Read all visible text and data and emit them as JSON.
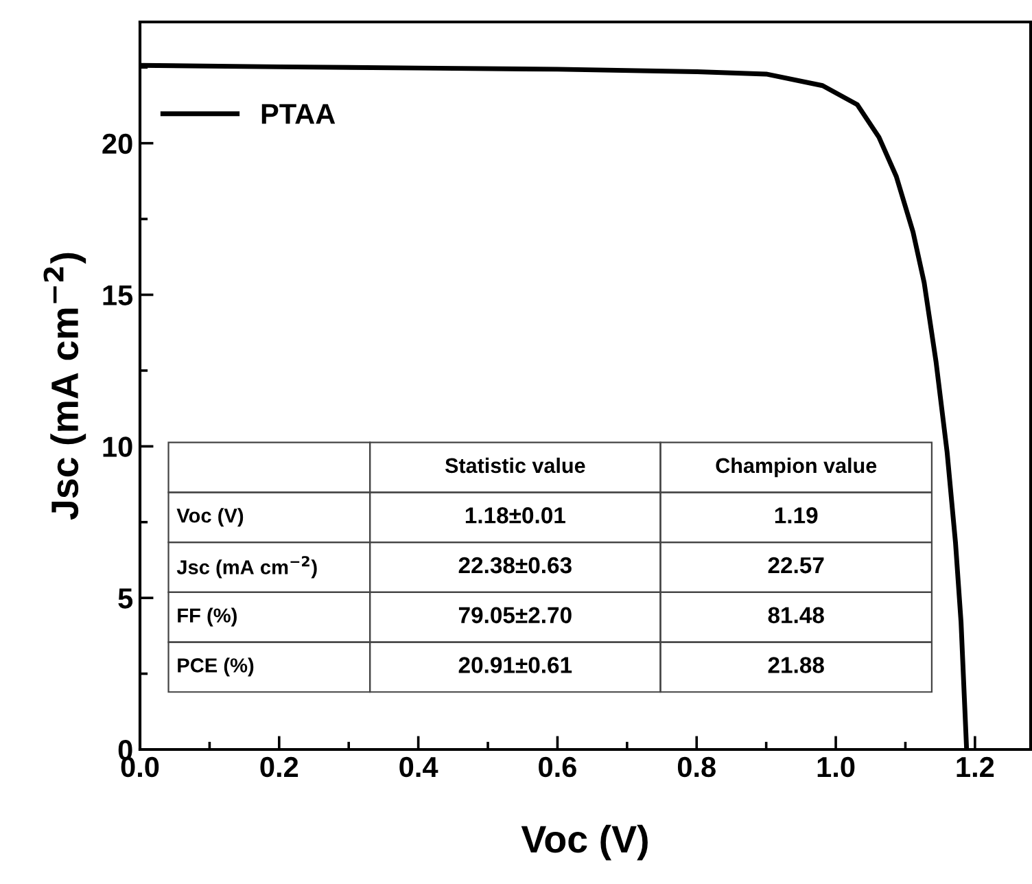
{
  "chart_data": {
    "type": "line",
    "xlabel": "Voc (V)",
    "ylabel": "Jsc (mA cm$^{−2}$)",
    "x": [
      0,
      0.2,
      0.4,
      0.6,
      0.8,
      0.9,
      0.981,
      1.031,
      1.062,
      1.087,
      1.111,
      1.127,
      1.144,
      1.16,
      1.172,
      1.18,
      1.188
    ],
    "series": [
      {
        "name": "PTAA",
        "color": "#000000",
        "values": [
          22.57,
          22.52,
          22.48,
          22.44,
          22.36,
          22.28,
          21.9,
          21.27,
          20.2,
          18.9,
          17.07,
          15.4,
          12.8,
          9.8,
          6.83,
          4.2,
          0
        ]
      }
    ],
    "xlim": [
      0,
      1.28
    ],
    "xticks": [
      {
        "value": 0,
        "label": "0.0"
      },
      0.2,
      0.4,
      0.6,
      0.8,
      {
        "value": 1,
        "label": "1.0"
      },
      1.2
    ],
    "ylim": [
      0,
      24
    ],
    "yticks": [
      0,
      5,
      10,
      15,
      20
    ],
    "legend": "top left",
    "grid": false,
    "marker": "none",
    "line_style": "solid",
    "annotations": [
      "Statistic value",
      "Champion value",
      "Voc (V)",
      "1.18±0.01",
      "1.19",
      "Jsc (mA cm$^{−2}$)",
      "22.38±0.63",
      "22.57",
      "FF (%)",
      "79.05±2.70",
      "81.48",
      "PCE (%)",
      "20.91±0.61",
      "21.88"
    ]
  }
}
